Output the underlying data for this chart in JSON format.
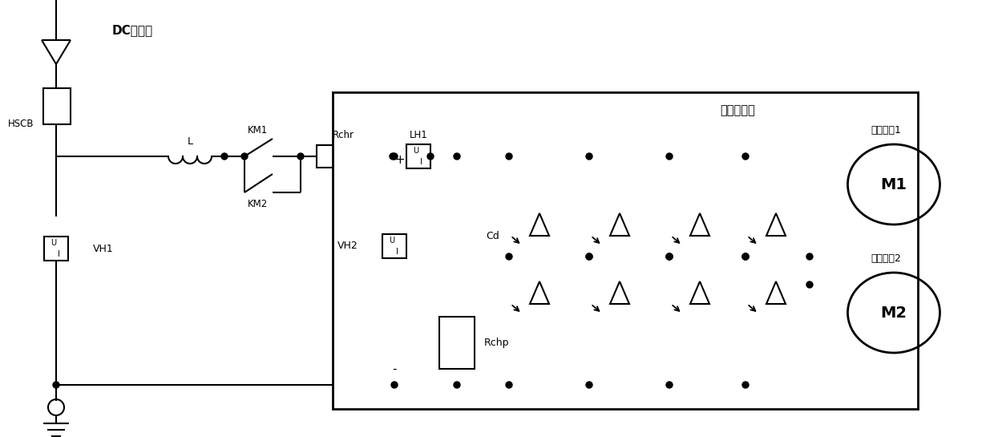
{
  "bg_color": "#ffffff",
  "figsize": [
    12.4,
    5.45
  ],
  "dpi": 100,
  "title_dc": "DC供电网",
  "title_inverter": "牵引逆变器",
  "label_hscb": "HSCB",
  "label_L": "L",
  "label_KM1": "KM1",
  "label_KM2": "KM2",
  "label_Rchr": "Rchr",
  "label_VH1": "VH1",
  "label_LH1": "LH1",
  "label_VH2": "VH2",
  "label_Cd": "Cd",
  "label_Rchp": "Rchp",
  "label_plus": "+",
  "label_minus": "-",
  "label_M1": "M1",
  "label_M2": "M2",
  "label_traction1": "牵引电机1",
  "label_traction2": "牵引电机2"
}
